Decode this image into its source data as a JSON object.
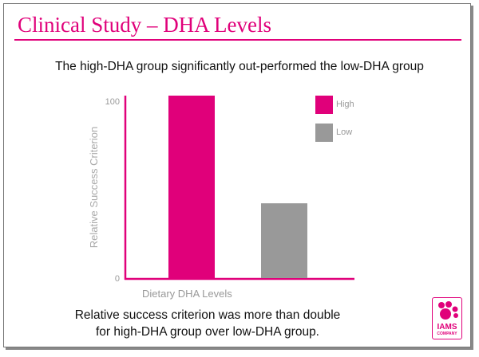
{
  "header": {
    "title": "Clinical Study – DHA Levels"
  },
  "subtitle": "The high-DHA group significantly out-performed the low-DHA group",
  "chart_data": {
    "type": "bar",
    "categories": [
      "High",
      "Low"
    ],
    "values": [
      100,
      41
    ],
    "xlabel": "Dietary DHA Levels",
    "ylabel": "Relative Success Criterion",
    "ylim": [
      0,
      100
    ],
    "yticks": [
      "0",
      "100"
    ],
    "legend": {
      "placement": "top-right",
      "entries": [
        "High",
        "Low"
      ]
    },
    "colors": [
      "#e0007a",
      "#999999"
    ],
    "axis_color": "#e0007a",
    "grid": false
  },
  "footnote": {
    "line1": "Relative success criterion was more than double",
    "line2": "for high-DHA group over low-DHA group."
  },
  "logo": {
    "text": "IAMS",
    "subtext": "COMPANY"
  }
}
